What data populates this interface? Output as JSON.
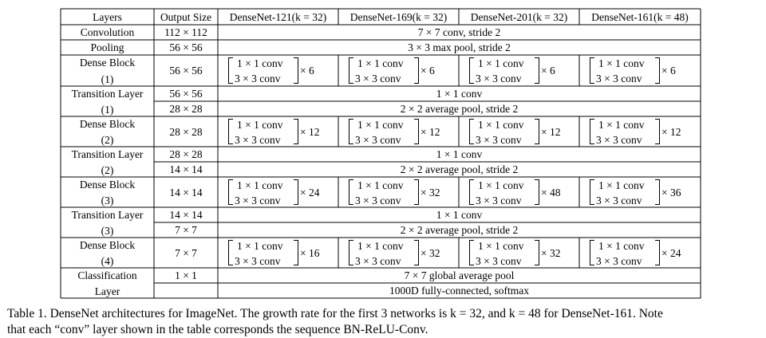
{
  "table": {
    "headers": [
      "Layers",
      "Output Size",
      "DenseNet-121(k = 32)",
      "DenseNet-169(k = 32)",
      "DenseNet-201(k = 32)",
      "DenseNet-161(k = 48)"
    ],
    "rows": [
      {
        "layer": [
          "Convolution"
        ],
        "sizes": [
          "112 × 112"
        ],
        "span": "7 × 7 conv, stride 2"
      },
      {
        "layer": [
          "Pooling"
        ],
        "sizes": [
          "56 × 56"
        ],
        "span": "3 × 3 max pool, stride 2"
      },
      {
        "layer": [
          "Dense Block",
          "(1)"
        ],
        "sizes": [
          "56 × 56"
        ],
        "block": {
          "line1": "1 × 1 conv",
          "line2": "3 × 3 conv",
          "multipliers": [
            "× 6",
            "× 6",
            "× 6",
            "× 6"
          ]
        }
      },
      {
        "layer": [
          "Transition Layer",
          "(1)"
        ],
        "sizes": [
          "56 × 56",
          "28 × 28"
        ],
        "spans": [
          "1 × 1 conv",
          "2 × 2 average pool, stride 2"
        ]
      },
      {
        "layer": [
          "Dense Block",
          "(2)"
        ],
        "sizes": [
          "28 × 28"
        ],
        "block": {
          "line1": "1 × 1 conv",
          "line2": "3 × 3 conv",
          "multipliers": [
            "× 12",
            "× 12",
            "× 12",
            "× 12"
          ]
        }
      },
      {
        "layer": [
          "Transition Layer",
          "(2)"
        ],
        "sizes": [
          "28 × 28",
          "14 × 14"
        ],
        "spans": [
          "1 × 1 conv",
          "2 × 2 average pool, stride 2"
        ]
      },
      {
        "layer": [
          "Dense Block",
          "(3)"
        ],
        "sizes": [
          "14 × 14"
        ],
        "block": {
          "line1": "1 × 1 conv",
          "line2": "3 × 3 conv",
          "multipliers": [
            "× 24",
            "× 32",
            "× 48",
            "× 36"
          ]
        }
      },
      {
        "layer": [
          "Transition Layer",
          "(3)"
        ],
        "sizes": [
          "14 × 14",
          "7 × 7"
        ],
        "spans": [
          "1 × 1 conv",
          "2 × 2 average pool, stride 2"
        ]
      },
      {
        "layer": [
          "Dense Block",
          "(4)"
        ],
        "sizes": [
          "7 × 7"
        ],
        "block": {
          "line1": "1 × 1 conv",
          "line2": "3 × 3 conv",
          "multipliers": [
            "× 16",
            "× 32",
            "× 32",
            "× 24"
          ]
        }
      },
      {
        "layer": [
          "Classification",
          "Layer"
        ],
        "sizes": [
          "1 × 1",
          ""
        ],
        "spans": [
          "7 × 7 global average pool",
          "1000D fully-connected, softmax"
        ]
      }
    ]
  },
  "caption": {
    "line1": "Table 1. DenseNet architectures for ImageNet. The growth rate for the first 3 networks is k = 32, and k = 48 for DenseNet-161. Note",
    "line2": "that each “conv” layer shown in the table corresponds the sequence BN-ReLU-Conv."
  }
}
